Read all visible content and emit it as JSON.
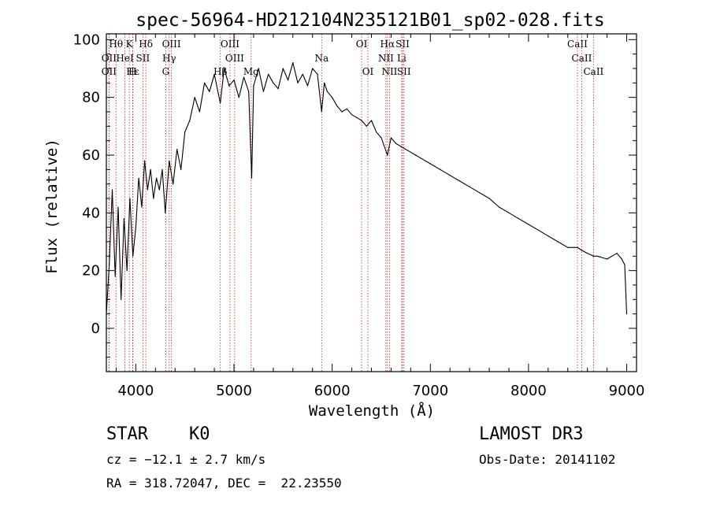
{
  "chart_data": {
    "type": "line",
    "title": "spec-56964-HD212104N235121B01_sp02-028.fits",
    "xlabel": "Wavelength (Å)",
    "ylabel": "Flux (relative)",
    "xlim": [
      3700,
      9100
    ],
    "ylim": [
      -15,
      102
    ],
    "xticks": [
      4000,
      5000,
      6000,
      7000,
      8000,
      9000
    ],
    "yticks": [
      0,
      20,
      40,
      60,
      80,
      100
    ],
    "series": [
      {
        "name": "Flux",
        "x": [
          3700,
          3730,
          3760,
          3790,
          3820,
          3850,
          3880,
          3910,
          3940,
          3970,
          4000,
          4030,
          4060,
          4090,
          4120,
          4150,
          4180,
          4210,
          4240,
          4270,
          4300,
          4340,
          4380,
          4420,
          4460,
          4500,
          4550,
          4600,
          4650,
          4700,
          4750,
          4800,
          4860,
          4900,
          4950,
          5000,
          5050,
          5100,
          5150,
          5180,
          5200,
          5250,
          5300,
          5350,
          5400,
          5450,
          5500,
          5550,
          5600,
          5650,
          5700,
          5750,
          5800,
          5850,
          5893,
          5920,
          5950,
          6000,
          6050,
          6100,
          6150,
          6200,
          6250,
          6300,
          6350,
          6400,
          6450,
          6500,
          6563,
          6600,
          6650,
          6700,
          6750,
          6800,
          6850,
          6900,
          6950,
          7000,
          7100,
          7200,
          7300,
          7400,
          7500,
          7600,
          7700,
          7800,
          7900,
          8000,
          8100,
          8200,
          8300,
          8400,
          8500,
          8542,
          8600,
          8662,
          8700,
          8800,
          8900,
          8950,
          8980,
          9000
        ],
        "values": [
          5,
          22,
          48,
          18,
          42,
          10,
          38,
          20,
          45,
          25,
          35,
          52,
          42,
          58,
          48,
          55,
          45,
          52,
          48,
          55,
          40,
          58,
          50,
          62,
          55,
          68,
          72,
          80,
          75,
          85,
          82,
          88,
          78,
          90,
          84,
          86,
          80,
          87,
          82,
          52,
          84,
          90,
          82,
          88,
          85,
          83,
          90,
          86,
          92,
          85,
          88,
          84,
          90,
          88,
          75,
          85,
          82,
          80,
          77,
          75,
          76,
          74,
          73,
          72,
          70,
          72,
          68,
          66,
          60,
          66,
          64,
          63,
          62,
          61,
          60,
          59,
          58,
          57,
          55,
          53,
          51,
          49,
          47,
          45,
          42,
          40,
          38,
          36,
          34,
          32,
          30,
          28,
          28,
          27,
          26,
          25,
          25,
          24,
          26,
          24,
          22,
          5
        ]
      }
    ],
    "lines": [
      {
        "label": "Hθ",
        "wave": 3798,
        "row": 0
      },
      {
        "label": "K",
        "wave": 3934,
        "row": 0
      },
      {
        "label": "Hδ",
        "wave": 4102,
        "row": 0
      },
      {
        "label": "OIII",
        "wave": 4363,
        "row": 0
      },
      {
        "label": "OIII",
        "wave": 4959,
        "row": 0
      },
      {
        "label": "OI",
        "wave": 6300,
        "row": 0
      },
      {
        "label": "Hα",
        "wave": 6563,
        "row": 0
      },
      {
        "label": "SII",
        "wave": 6717,
        "row": 0
      },
      {
        "label": "CaII",
        "wave": 8498,
        "row": 0
      },
      {
        "label": "OII",
        "wave": 3727,
        "row": 1
      },
      {
        "label": "HeI",
        "wave": 3889,
        "row": 1
      },
      {
        "label": "SII",
        "wave": 4072,
        "row": 1
      },
      {
        "label": "Hγ",
        "wave": 4340,
        "row": 1
      },
      {
        "label": "OIII",
        "wave": 5007,
        "row": 1
      },
      {
        "label": "Na",
        "wave": 5893,
        "row": 1
      },
      {
        "label": "NII",
        "wave": 6548,
        "row": 1
      },
      {
        "label": "Li",
        "wave": 6708,
        "row": 1
      },
      {
        "label": "CaII",
        "wave": 8542,
        "row": 1
      },
      {
        "label": "OII",
        "wave": 3727,
        "row": 2
      },
      {
        "label": "Hε",
        "wave": 3970,
        "row": 2
      },
      {
        "label": "H",
        "wave": 3968,
        "row": 2
      },
      {
        "label": "G",
        "wave": 4305,
        "row": 2
      },
      {
        "label": "Hβ",
        "wave": 4861,
        "row": 2
      },
      {
        "label": "Mg",
        "wave": 5175,
        "row": 2
      },
      {
        "label": "OI",
        "wave": 6364,
        "row": 2
      },
      {
        "label": "NII",
        "wave": 6584,
        "row": 2
      },
      {
        "label": "SII",
        "wave": 6731,
        "row": 2
      },
      {
        "label": "CaII",
        "wave": 8662,
        "row": 2
      }
    ]
  },
  "info": {
    "object_type": "STAR",
    "subclass": "K0",
    "redshift": "cz = −12.1 ± 2.7 km/s",
    "coords": "RA = 318.72047, DEC =  22.23550",
    "survey": "LAMOST DR3",
    "obs_date": "Obs-Date: 20141102"
  }
}
